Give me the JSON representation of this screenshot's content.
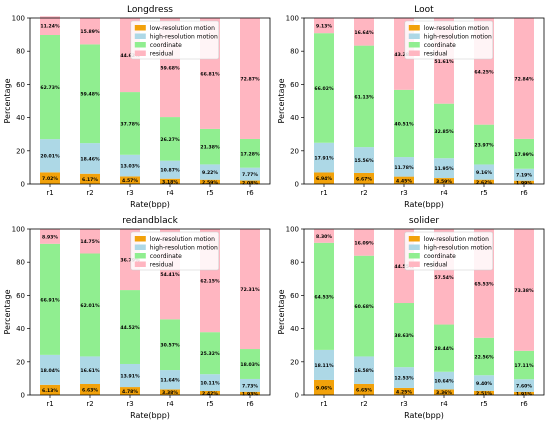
{
  "legend_labels": [
    "low-resolution motion",
    "high-resolution motion",
    "coordinate",
    "residual"
  ],
  "colors": {
    "low-resolution motion": "#f2a20b",
    "high-resolution motion": "#add8e6",
    "coordinate": "#90ee90",
    "residual": "#ffb6c1"
  },
  "chart_data": [
    {
      "type": "bar",
      "stacked": true,
      "title": "Longdress",
      "xlabel": "Rate(bpp)",
      "ylabel": "Percentage",
      "ylim": [
        0,
        100
      ],
      "yticks": [
        0,
        20,
        40,
        60,
        80,
        100
      ],
      "categories": [
        "r1",
        "r2",
        "r3",
        "r4",
        "r5",
        "r6"
      ],
      "legend_position": "top-center",
      "series": [
        {
          "name": "low-resolution motion",
          "values": [
            7.02,
            6.17,
            4.57,
            3.18,
            2.59,
            2.08
          ],
          "labels": [
            "7.02%",
            "6.17%",
            "4.57%",
            "3.18%",
            "2.59%",
            "2.08%"
          ]
        },
        {
          "name": "high-resolution motion",
          "values": [
            20.01,
            18.46,
            13.03,
            10.87,
            9.22,
            7.77
          ],
          "labels": [
            "20.01%",
            "18.46%",
            "13.03%",
            "10.87%",
            "9.22%",
            "7.77%"
          ]
        },
        {
          "name": "coordinate",
          "values": [
            62.73,
            59.48,
            37.78,
            26.27,
            21.38,
            17.28
          ],
          "labels": [
            "62.73%",
            "59.48%",
            "37.78%",
            "26.27%",
            "21.38%",
            "17.28%"
          ]
        },
        {
          "name": "residual",
          "values": [
            11.24,
            15.89,
            44.62,
            59.68,
            66.81,
            72.87
          ],
          "labels": [
            "11.24%",
            "15.89%",
            "44.62%",
            "59.68%",
            "66.81%",
            "72.87%"
          ]
        }
      ]
    },
    {
      "type": "bar",
      "stacked": true,
      "title": "Loot",
      "xlabel": "Rate(bpp)",
      "ylabel": "Percentage",
      "ylim": [
        0,
        100
      ],
      "yticks": [
        0,
        20,
        40,
        60,
        80,
        100
      ],
      "categories": [
        "r1",
        "r2",
        "r3",
        "r4",
        "r5",
        "r6"
      ],
      "legend_position": "top-center",
      "series": [
        {
          "name": "low-resolution motion",
          "values": [
            6.94,
            6.67,
            4.45,
            3.59,
            2.62,
            1.99
          ],
          "labels": [
            "6.94%",
            "6.67%",
            "4.45%",
            "3.59%",
            "2.62%",
            "1.99%"
          ]
        },
        {
          "name": "high-resolution motion",
          "values": [
            17.91,
            15.56,
            11.78,
            11.95,
            9.16,
            7.19
          ],
          "labels": [
            "17.91%",
            "15.56%",
            "11.78%",
            "11.95%",
            "9.16%",
            "7.19%"
          ]
        },
        {
          "name": "coordinate",
          "values": [
            66.02,
            61.13,
            40.51,
            32.85,
            23.97,
            17.99
          ],
          "labels": [
            "66.02%",
            "61.13%",
            "40.51%",
            "32.85%",
            "23.97%",
            "17.99%"
          ]
        },
        {
          "name": "residual",
          "values": [
            9.13,
            16.64,
            43.28,
            51.61,
            64.25,
            72.84
          ],
          "labels": [
            "9.13%",
            "16.64%",
            "43.28%",
            "51.61%",
            "64.25%",
            "72.84%"
          ]
        }
      ]
    },
    {
      "type": "bar",
      "stacked": true,
      "title": "redandblack",
      "xlabel": "Rate(bpp)",
      "ylabel": "Percentage",
      "ylim": [
        0,
        100
      ],
      "yticks": [
        0,
        20,
        40,
        60,
        80,
        100
      ],
      "categories": [
        "r1",
        "r2",
        "r3",
        "r4",
        "r5",
        "r6"
      ],
      "legend_position": "top-center",
      "series": [
        {
          "name": "low-resolution motion",
          "values": [
            6.13,
            6.63,
            4.78,
            3.38,
            2.42,
            1.93
          ],
          "labels": [
            "6.13%",
            "6.63%",
            "4.78%",
            "3.38%",
            "2.42%",
            "1.93%"
          ]
        },
        {
          "name": "high-resolution motion",
          "values": [
            18.04,
            16.61,
            13.91,
            11.64,
            10.11,
            7.73
          ],
          "labels": [
            "18.04%",
            "16.61%",
            "13.91%",
            "11.64%",
            "10.11%",
            "7.73%"
          ]
        },
        {
          "name": "coordinate",
          "values": [
            66.91,
            62.01,
            44.52,
            30.57,
            25.32,
            18.03
          ],
          "labels": [
            "66.91%",
            "62.01%",
            "44.52%",
            "30.57%",
            "25.32%",
            "18.03%"
          ]
        },
        {
          "name": "residual",
          "values": [
            8.93,
            14.75,
            36.79,
            54.41,
            62.15,
            72.31
          ],
          "labels": [
            "8.93%",
            "14.75%",
            "36.79%",
            "54.41%",
            "62.15%",
            "72.31%"
          ]
        }
      ]
    },
    {
      "type": "bar",
      "stacked": true,
      "title": "solider",
      "xlabel": "Rate(bpp)",
      "ylabel": "Percentage",
      "ylim": [
        0,
        100
      ],
      "yticks": [
        0,
        20,
        40,
        60,
        80,
        100
      ],
      "categories": [
        "r1",
        "r2",
        "r3",
        "r4",
        "r5",
        "r6"
      ],
      "legend_position": "top-center",
      "series": [
        {
          "name": "low-resolution motion",
          "values": [
            9.06,
            6.65,
            4.25,
            3.36,
            2.51,
            1.91
          ],
          "labels": [
            "9.06%",
            "6.65%",
            "4.25%",
            "3.36%",
            "2.51%",
            "1.91%"
          ]
        },
        {
          "name": "high-resolution motion",
          "values": [
            18.11,
            16.58,
            12.53,
            10.64,
            9.4,
            7.6
          ],
          "labels": [
            "18.11%",
            "16.58%",
            "12.53%",
            "10.64%",
            "9.40%",
            "7.60%"
          ]
        },
        {
          "name": "coordinate",
          "values": [
            64.53,
            60.68,
            38.63,
            28.44,
            22.56,
            17.11
          ],
          "labels": [
            "64.53%",
            "60.68%",
            "38.63%",
            "28.44%",
            "22.56%",
            "17.11%"
          ]
        },
        {
          "name": "residual",
          "values": [
            8.3,
            16.09,
            44.55,
            57.54,
            65.53,
            73.38
          ],
          "labels": [
            "8.30%",
            "16.09%",
            "44.55%",
            "57.54%",
            "65.53%",
            "73.38%"
          ]
        }
      ]
    }
  ]
}
